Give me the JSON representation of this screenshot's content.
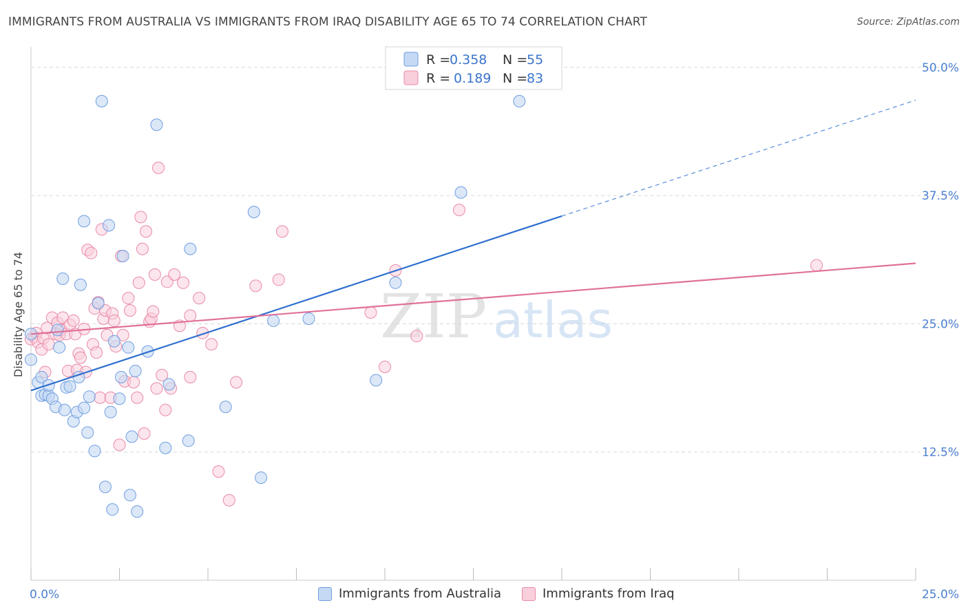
{
  "header": {
    "title": "IMMIGRANTS FROM AUSTRALIA VS IMMIGRANTS FROM IRAQ DISABILITY AGE 65 TO 74 CORRELATION CHART",
    "source": "Source: ZipAtlas.com"
  },
  "watermark": {
    "part1": "ZIP",
    "part2": "atlas"
  },
  "legend": {
    "australia": {
      "r_label": "R = ",
      "r_value": "0.358",
      "n_label": "N = ",
      "n_value": "55"
    },
    "iraq": {
      "r_label": "R = ",
      "r_value": "0.189",
      "n_label": "N = ",
      "n_value": "83"
    }
  },
  "bottom_legend": {
    "australia": "Immigrants from Australia",
    "iraq": "Immigrants from Iraq"
  },
  "colors": {
    "australia_fill": "#c5d9f4",
    "australia_stroke": "#6f9ee0",
    "australia_line": "#2d6fce",
    "iraq_fill": "#f9cfdc",
    "iraq_stroke": "#e88aa8",
    "iraq_line": "#e0709a",
    "tick_text": "#4a7fd0",
    "grid": "#d8d8d8"
  },
  "chart_data": {
    "type": "scatter",
    "title": "IMMIGRANTS FROM AUSTRALIA VS IMMIGRANTS FROM IRAQ DISABILITY AGE 65 TO 74 CORRELATION CHART",
    "xlabel": "",
    "ylabel": "Disability Age 65 to 74",
    "xlim": [
      0,
      25
    ],
    "ylim": [
      0,
      52
    ],
    "x_tick_labels": [
      {
        "value": 0,
        "label": "0.0%"
      },
      {
        "value": 25,
        "label": "25.0%"
      }
    ],
    "y_tick_labels": [
      {
        "value": 12.5,
        "label": "12.5%"
      },
      {
        "value": 25,
        "label": "25.0%"
      },
      {
        "value": 37.5,
        "label": "37.5%"
      },
      {
        "value": 50,
        "label": "50.0%"
      }
    ],
    "series": [
      {
        "name": "Immigrants from Australia",
        "R": 0.358,
        "N": 55,
        "trend": {
          "x0": 0,
          "y0": 18.5,
          "x1": 15,
          "y1": 35.5,
          "dashed_to_x": 25,
          "dashed_to_y": 46.8
        },
        "points": [
          [
            0.0,
            24.0
          ],
          [
            0.0,
            21.5
          ],
          [
            0.2,
            19.3
          ],
          [
            0.3,
            19.8
          ],
          [
            0.3,
            18.0
          ],
          [
            0.4,
            18.1
          ],
          [
            0.5,
            18.0
          ],
          [
            0.5,
            19.0
          ],
          [
            0.6,
            17.7
          ],
          [
            0.7,
            16.9
          ],
          [
            0.75,
            24.4
          ],
          [
            0.8,
            22.7
          ],
          [
            0.9,
            29.4
          ],
          [
            0.95,
            16.6
          ],
          [
            1.0,
            18.8
          ],
          [
            1.1,
            18.9
          ],
          [
            1.2,
            15.5
          ],
          [
            1.3,
            16.4
          ],
          [
            1.35,
            19.8
          ],
          [
            1.4,
            28.8
          ],
          [
            1.5,
            16.8
          ],
          [
            1.5,
            35.0
          ],
          [
            1.6,
            14.4
          ],
          [
            1.65,
            17.9
          ],
          [
            1.8,
            12.6
          ],
          [
            1.9,
            27.0
          ],
          [
            2.0,
            46.7
          ],
          [
            2.1,
            9.1
          ],
          [
            2.2,
            34.6
          ],
          [
            2.25,
            16.4
          ],
          [
            2.3,
            6.9
          ],
          [
            2.35,
            23.3
          ],
          [
            2.5,
            17.7
          ],
          [
            2.55,
            19.8
          ],
          [
            2.6,
            31.6
          ],
          [
            2.75,
            22.7
          ],
          [
            2.8,
            8.3
          ],
          [
            2.85,
            14.0
          ],
          [
            2.95,
            20.4
          ],
          [
            3.0,
            6.7
          ],
          [
            3.3,
            22.3
          ],
          [
            3.55,
            44.4
          ],
          [
            3.8,
            12.9
          ],
          [
            3.9,
            19.1
          ],
          [
            4.45,
            13.6
          ],
          [
            4.5,
            32.3
          ],
          [
            5.5,
            16.9
          ],
          [
            6.3,
            35.9
          ],
          [
            6.5,
            10.0
          ],
          [
            6.85,
            25.3
          ],
          [
            7.85,
            25.5
          ],
          [
            9.75,
            19.5
          ],
          [
            10.3,
            29.0
          ],
          [
            12.15,
            37.8
          ],
          [
            13.8,
            46.7
          ]
        ]
      },
      {
        "name": "Immigrants from Iraq",
        "R": 0.189,
        "N": 83,
        "trend": {
          "x0": 0,
          "y0": 24.0,
          "x1": 25,
          "y1": 30.9
        },
        "points": [
          [
            0.0,
            23.5
          ],
          [
            0.1,
            23.7
          ],
          [
            0.15,
            24.1
          ],
          [
            0.2,
            23.2
          ],
          [
            0.3,
            22.5
          ],
          [
            0.35,
            23.6
          ],
          [
            0.4,
            20.3
          ],
          [
            0.45,
            24.6
          ],
          [
            0.5,
            23.0
          ],
          [
            0.6,
            25.6
          ],
          [
            0.7,
            24.0
          ],
          [
            0.75,
            25.1
          ],
          [
            0.8,
            23.9
          ],
          [
            0.85,
            24.4
          ],
          [
            0.9,
            25.6
          ],
          [
            1.0,
            24.0
          ],
          [
            1.05,
            20.4
          ],
          [
            1.1,
            24.9
          ],
          [
            1.2,
            25.3
          ],
          [
            1.25,
            24.0
          ],
          [
            1.3,
            20.5
          ],
          [
            1.35,
            22.1
          ],
          [
            1.4,
            21.7
          ],
          [
            1.5,
            24.5
          ],
          [
            1.55,
            20.3
          ],
          [
            1.6,
            32.2
          ],
          [
            1.7,
            31.9
          ],
          [
            1.75,
            23.0
          ],
          [
            1.8,
            26.5
          ],
          [
            1.85,
            22.2
          ],
          [
            1.9,
            27.1
          ],
          [
            1.95,
            17.8
          ],
          [
            2.0,
            34.2
          ],
          [
            2.05,
            25.5
          ],
          [
            2.1,
            26.3
          ],
          [
            2.15,
            23.9
          ],
          [
            2.25,
            17.8
          ],
          [
            2.3,
            26.0
          ],
          [
            2.35,
            25.3
          ],
          [
            2.4,
            22.8
          ],
          [
            2.5,
            13.2
          ],
          [
            2.55,
            31.6
          ],
          [
            2.6,
            23.9
          ],
          [
            2.65,
            19.4
          ],
          [
            2.75,
            27.5
          ],
          [
            2.8,
            26.3
          ],
          [
            2.9,
            19.3
          ],
          [
            3.0,
            17.8
          ],
          [
            3.05,
            29.0
          ],
          [
            3.1,
            35.4
          ],
          [
            3.15,
            32.3
          ],
          [
            3.2,
            14.3
          ],
          [
            3.25,
            34.0
          ],
          [
            3.35,
            25.2
          ],
          [
            3.4,
            25.5
          ],
          [
            3.45,
            26.2
          ],
          [
            3.5,
            29.8
          ],
          [
            3.55,
            18.7
          ],
          [
            3.6,
            40.2
          ],
          [
            3.7,
            20.0
          ],
          [
            3.8,
            16.6
          ],
          [
            3.85,
            29.1
          ],
          [
            3.95,
            18.7
          ],
          [
            4.05,
            29.8
          ],
          [
            4.2,
            24.8
          ],
          [
            4.3,
            29.0
          ],
          [
            4.5,
            19.8
          ],
          [
            4.5,
            25.8
          ],
          [
            4.75,
            27.5
          ],
          [
            4.85,
            24.1
          ],
          [
            5.1,
            23.0
          ],
          [
            5.3,
            10.6
          ],
          [
            5.6,
            7.8
          ],
          [
            5.8,
            19.3
          ],
          [
            6.35,
            28.7
          ],
          [
            7.0,
            29.3
          ],
          [
            7.1,
            34.0
          ],
          [
            9.6,
            26.1
          ],
          [
            10.0,
            20.8
          ],
          [
            10.3,
            30.2
          ],
          [
            10.9,
            23.8
          ],
          [
            12.1,
            36.1
          ],
          [
            22.2,
            30.7
          ]
        ]
      }
    ]
  }
}
